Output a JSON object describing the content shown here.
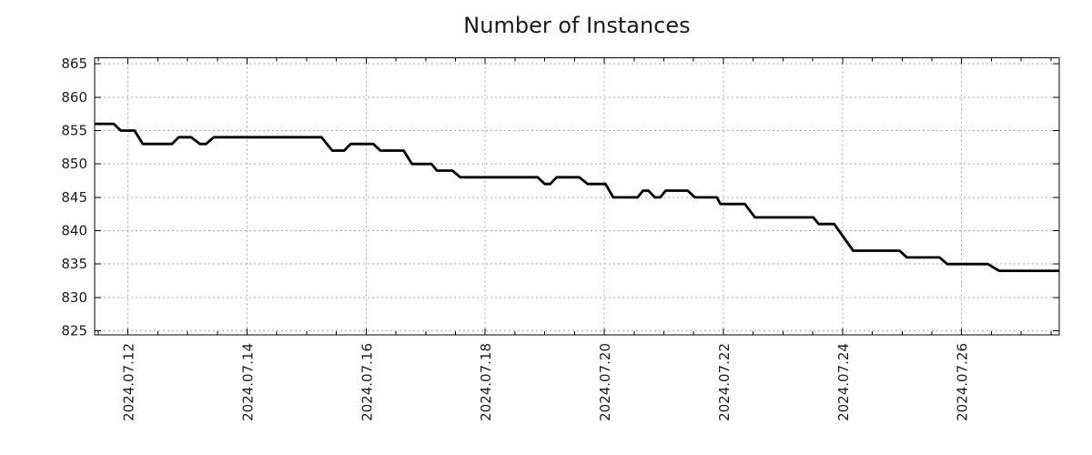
{
  "chart_data": {
    "type": "line",
    "title": "Number of Instances",
    "xlabel": "",
    "ylabel": "",
    "x_unit": "date, July 2024 (fractional days)",
    "xlim": [
      11.44,
      27.64
    ],
    "ylim": [
      824.4,
      865.9
    ],
    "grid": true,
    "legend": "none",
    "line_color": "#000000",
    "grid_color": "#a6a6a6",
    "axis_color": "#000000",
    "text_color": "#1c1c1c",
    "y_ticks": [
      825,
      830,
      835,
      840,
      845,
      850,
      855,
      860,
      865
    ],
    "x_ticks": [
      {
        "day": 12,
        "label": "2024.07.12"
      },
      {
        "day": 14,
        "label": "2024.07.14"
      },
      {
        "day": 16,
        "label": "2024.07.16"
      },
      {
        "day": 18,
        "label": "2024.07.18"
      },
      {
        "day": 20,
        "label": "2024.07.20"
      },
      {
        "day": 22,
        "label": "2024.07.22"
      },
      {
        "day": 24,
        "label": "2024.07.24"
      },
      {
        "day": 26,
        "label": "2024.07.26"
      }
    ],
    "x_minor_tick_step_days": 0.5,
    "series": [
      {
        "points": [
          [
            11.44,
            856
          ],
          [
            11.76,
            856
          ],
          [
            11.88,
            855
          ],
          [
            12.11,
            855
          ],
          [
            12.25,
            853
          ],
          [
            12.74,
            853
          ],
          [
            12.85,
            854
          ],
          [
            13.06,
            854
          ],
          [
            13.21,
            853
          ],
          [
            13.31,
            853
          ],
          [
            13.44,
            854
          ],
          [
            15.25,
            854
          ],
          [
            15.43,
            852
          ],
          [
            15.63,
            852
          ],
          [
            15.74,
            853
          ],
          [
            16.12,
            853
          ],
          [
            16.24,
            852
          ],
          [
            16.63,
            852
          ],
          [
            16.77,
            850
          ],
          [
            17.1,
            850
          ],
          [
            17.19,
            849
          ],
          [
            17.45,
            849
          ],
          [
            17.58,
            848
          ],
          [
            18.88,
            848
          ],
          [
            19.0,
            847
          ],
          [
            19.09,
            847
          ],
          [
            19.2,
            848
          ],
          [
            19.58,
            848
          ],
          [
            19.72,
            847
          ],
          [
            20.02,
            847
          ],
          [
            20.15,
            845
          ],
          [
            20.56,
            845
          ],
          [
            20.65,
            846
          ],
          [
            20.74,
            846
          ],
          [
            20.85,
            845
          ],
          [
            20.94,
            845
          ],
          [
            21.03,
            846
          ],
          [
            21.4,
            846
          ],
          [
            21.52,
            845
          ],
          [
            21.89,
            845
          ],
          [
            21.95,
            844
          ],
          [
            22.36,
            844
          ],
          [
            22.53,
            842
          ],
          [
            23.51,
            842
          ],
          [
            23.6,
            841
          ],
          [
            23.86,
            841
          ],
          [
            24.18,
            837
          ],
          [
            24.96,
            837
          ],
          [
            25.08,
            836
          ],
          [
            25.63,
            836
          ],
          [
            25.76,
            835
          ],
          [
            26.44,
            835
          ],
          [
            26.63,
            834
          ],
          [
            27.64,
            834
          ]
        ]
      }
    ]
  }
}
